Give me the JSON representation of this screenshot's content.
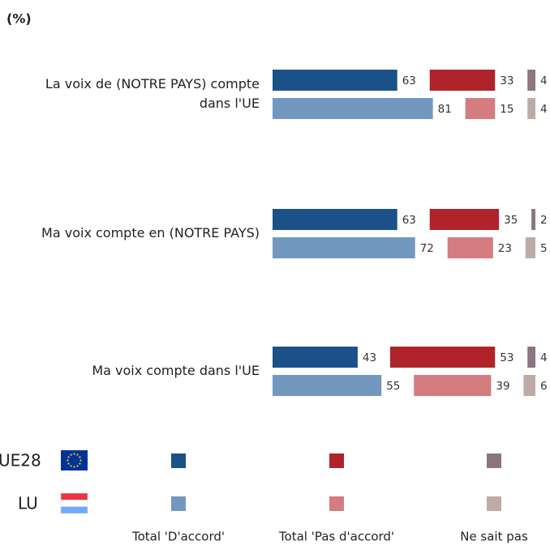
{
  "chart_data": {
    "type": "bar",
    "subtitle": "(%)",
    "categories": [
      [
        "La voix de (NOTRE PAYS) compte",
        "dans  l'UE"
      ],
      [
        "Ma voix compte en (NOTRE PAYS)"
      ],
      [
        "Ma voix compte dans l'UE"
      ]
    ],
    "segments": [
      "Total 'D'accord'",
      "Total 'Pas d'accord'",
      "Ne sait pas"
    ],
    "series": [
      {
        "name": "UE28",
        "colors": [
          "#1a5189",
          "#b0232a",
          "#8a7580"
        ],
        "values": [
          [
            63,
            33,
            4
          ],
          [
            63,
            35,
            2
          ],
          [
            43,
            53,
            4
          ]
        ]
      },
      {
        "name": "LU",
        "colors": [
          "#7398bf",
          "#d47c80",
          "#bcaba6"
        ],
        "values": [
          [
            81,
            15,
            4
          ],
          [
            72,
            23,
            5
          ],
          [
            55,
            39,
            6
          ]
        ]
      }
    ]
  }
}
